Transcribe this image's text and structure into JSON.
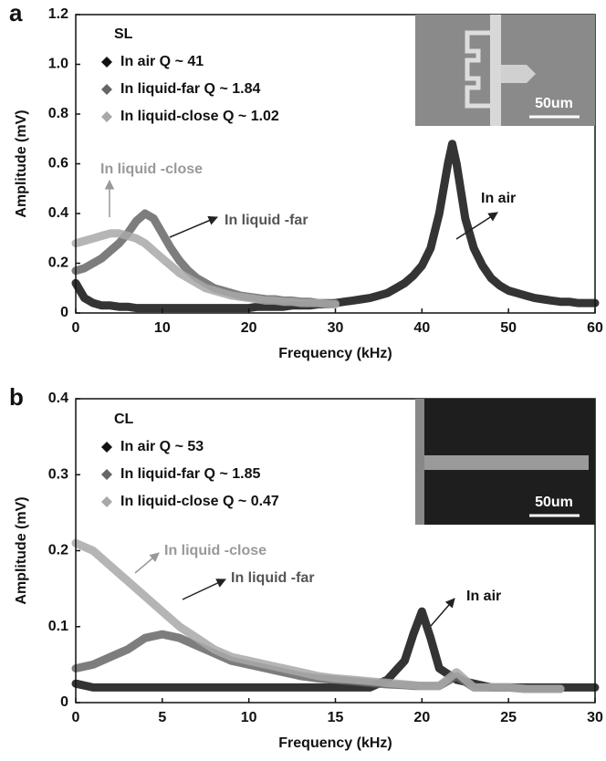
{
  "chart_data": [
    {
      "type": "line",
      "panel_label": "a",
      "legend_title": "SL",
      "inset_label": "50um",
      "xlabel": "Frequency (kHz)",
      "ylabel": "Amplitude (mV)",
      "x": [
        0,
        1,
        2,
        3,
        4,
        5,
        6,
        7,
        8,
        9,
        10,
        11,
        12,
        13,
        14,
        15,
        16,
        17,
        18,
        19,
        20,
        21,
        22,
        23,
        24,
        25,
        26,
        27,
        28,
        29,
        30,
        31,
        32,
        33,
        34,
        35,
        36,
        37,
        38,
        39,
        40,
        41,
        42,
        43,
        43.5,
        44,
        45,
        46,
        47,
        48,
        49,
        50,
        51,
        52,
        53,
        54,
        55,
        56,
        57,
        58,
        59,
        60
      ],
      "series": [
        {
          "name": "In air Q ~ 41",
          "color": "#111111",
          "values": [
            0.12,
            0.06,
            0.04,
            0.03,
            0.03,
            0.025,
            0.025,
            0.02,
            0.02,
            0.02,
            0.02,
            0.02,
            0.02,
            0.02,
            0.02,
            0.02,
            0.02,
            0.02,
            0.02,
            0.02,
            0.02,
            0.025,
            0.025,
            0.025,
            0.025,
            0.03,
            0.03,
            0.03,
            0.035,
            0.035,
            0.04,
            0.045,
            0.05,
            0.055,
            0.06,
            0.07,
            0.08,
            0.1,
            0.12,
            0.15,
            0.19,
            0.26,
            0.4,
            0.6,
            0.68,
            0.6,
            0.38,
            0.26,
            0.19,
            0.14,
            0.11,
            0.09,
            0.08,
            0.07,
            0.06,
            0.055,
            0.05,
            0.045,
            0.045,
            0.04,
            0.04,
            0.04
          ]
        },
        {
          "name": "In liquid-far Q ~ 1.84",
          "color": "#666666",
          "values": [
            0.17,
            0.18,
            0.2,
            0.22,
            0.25,
            0.28,
            0.32,
            0.37,
            0.4,
            0.38,
            0.32,
            0.26,
            0.21,
            0.17,
            0.14,
            0.12,
            0.1,
            0.09,
            0.08,
            0.07,
            0.065,
            0.06,
            0.055,
            0.055,
            0.05,
            0.05,
            0.045,
            0.045,
            0.04,
            0.04,
            0.04,
            null,
            null,
            null,
            null,
            null,
            null,
            null,
            null,
            null,
            null,
            null,
            null,
            null,
            null,
            null,
            null,
            null,
            null,
            null,
            null,
            null,
            null,
            null,
            null,
            null,
            null,
            null,
            null,
            null,
            null,
            null
          ]
        },
        {
          "name": "In liquid-close Q ~ 1.02",
          "color": "#a8a8a8",
          "values": [
            0.28,
            0.29,
            0.3,
            0.31,
            0.32,
            0.32,
            0.31,
            0.3,
            0.28,
            0.25,
            0.22,
            0.19,
            0.16,
            0.14,
            0.12,
            0.1,
            0.09,
            0.08,
            0.07,
            0.065,
            0.06,
            0.055,
            0.05,
            0.05,
            0.045,
            0.045,
            0.04,
            0.04,
            0.04,
            0.035,
            0.035,
            null,
            null,
            null,
            null,
            null,
            null,
            null,
            null,
            null,
            null,
            null,
            null,
            null,
            null,
            null,
            null,
            null,
            null,
            null,
            null,
            null,
            null,
            null,
            null,
            null,
            null,
            null,
            null,
            null,
            null,
            null
          ]
        }
      ],
      "annotations": [
        "In liquid -close",
        "In liquid -far",
        "In air"
      ],
      "xlim": [
        0,
        60
      ],
      "xticks": [
        0,
        10,
        20,
        30,
        40,
        50,
        60
      ],
      "ylim": [
        0,
        1.2
      ],
      "yticks": [
        0,
        0.2,
        0.4,
        0.6,
        0.8,
        {
          "value": 1,
          "label": "1.0"
        },
        1.2
      ]
    },
    {
      "type": "line",
      "panel_label": "b",
      "legend_title": "CL",
      "inset_label": "50um",
      "xlabel": "Frequency (kHz)",
      "ylabel": "Amplitude (mV)",
      "x": [
        0,
        1,
        2,
        3,
        4,
        5,
        6,
        7,
        8,
        9,
        10,
        11,
        12,
        13,
        14,
        15,
        16,
        17,
        18,
        19,
        19.5,
        20,
        20.5,
        21,
        22,
        23,
        24,
        25,
        26,
        27,
        28,
        29,
        30
      ],
      "series": [
        {
          "name": "In air Q ~ 53",
          "color": "#111111",
          "values": [
            0.025,
            0.02,
            0.02,
            0.02,
            0.02,
            0.02,
            0.02,
            0.02,
            0.02,
            0.02,
            0.02,
            0.02,
            0.02,
            0.02,
            0.02,
            0.02,
            0.02,
            0.02,
            0.03,
            0.055,
            0.09,
            0.12,
            0.085,
            0.045,
            0.03,
            0.025,
            0.02,
            0.02,
            0.02,
            0.02,
            0.02,
            0.02,
            0.02
          ]
        },
        {
          "name": "In liquid-far Q ~ 1.85",
          "color": "#666666",
          "values": [
            0.045,
            0.05,
            0.06,
            0.07,
            0.085,
            0.09,
            0.085,
            0.075,
            0.065,
            0.055,
            0.05,
            0.045,
            0.04,
            0.035,
            0.032,
            0.03,
            0.028,
            0.026,
            0.024,
            0.023,
            0.022,
            0.022,
            0.022,
            0.022,
            0.035,
            0.02,
            0.02,
            0.02,
            0.018,
            0.018,
            0.018,
            null,
            null
          ]
        },
        {
          "name": "In liquid-close Q ~ 0.47",
          "color": "#a8a8a8",
          "values": [
            0.21,
            0.2,
            0.18,
            0.16,
            0.14,
            0.12,
            0.1,
            0.085,
            0.07,
            0.06,
            0.055,
            0.05,
            0.045,
            0.04,
            0.035,
            0.032,
            0.03,
            0.028,
            0.026,
            0.024,
            0.023,
            0.022,
            0.022,
            0.022,
            0.04,
            0.02,
            0.02,
            0.02,
            0.018,
            0.018,
            0.018,
            null,
            null
          ]
        }
      ],
      "annotations": [
        "In liquid -close",
        "In liquid -far",
        "In air"
      ],
      "xlim": [
        0,
        30
      ],
      "xticks": [
        0,
        5,
        10,
        15,
        20,
        25,
        30
      ],
      "ylim": [
        0,
        0.4
      ],
      "yticks": [
        0,
        0.1,
        0.2,
        0.3,
        0.4
      ]
    }
  ]
}
